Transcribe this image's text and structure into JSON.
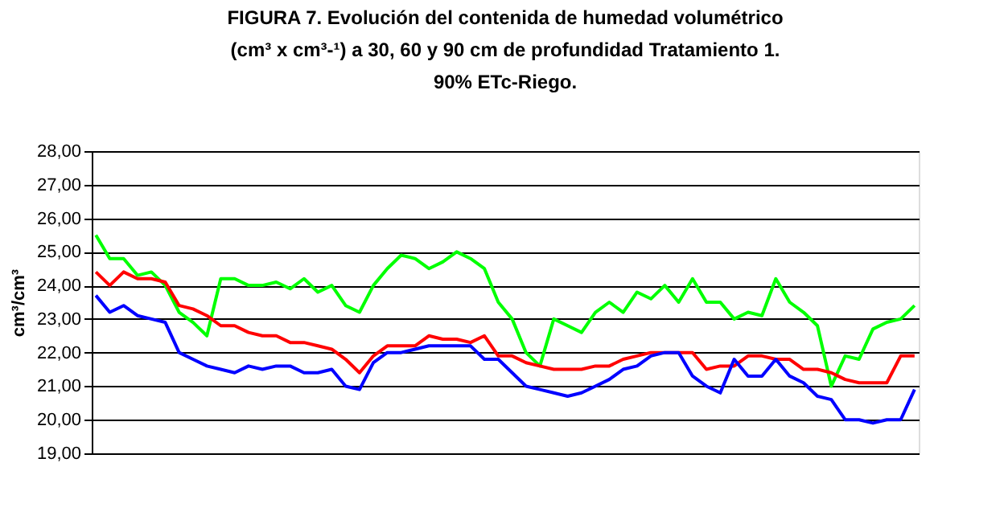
{
  "chart_data": {
    "type": "line",
    "title": "FIGURA 7. Evolución del contenida de humedad volumétrico\n(cm³ x cm³-¹) a 30, 60 y 90 cm de profundidad Tratamiento 1.\n90% ETc-Riego.",
    "ylabel": "cm³/cm³",
    "categories": [
      null,
      null,
      null,
      null,
      null,
      null,
      null,
      null,
      null,
      null,
      null,
      null,
      null,
      null,
      null,
      null,
      null,
      null,
      null,
      null,
      null,
      null,
      null,
      null,
      null,
      null,
      null,
      null,
      null,
      null,
      null,
      null,
      null,
      null,
      null,
      null,
      null,
      null,
      null,
      null,
      null,
      null,
      null,
      null,
      null,
      null,
      null,
      null,
      null,
      null,
      null,
      null,
      null,
      null,
      null,
      null,
      null,
      null,
      null,
      null
    ],
    "series": [
      {
        "color": "#00ff00",
        "values": [
          25.5,
          24.8,
          24.8,
          24.3,
          24.4,
          24.0,
          23.2,
          22.9,
          22.5,
          24.2,
          24.2,
          24.0,
          24.0,
          24.1,
          23.9,
          24.2,
          23.8,
          24.0,
          23.4,
          23.2,
          24.0,
          24.5,
          24.9,
          24.8,
          24.5,
          24.7,
          25.0,
          24.8,
          24.5,
          23.5,
          23.0,
          22.0,
          21.6,
          23.0,
          22.8,
          22.6,
          23.2,
          23.5,
          23.2,
          23.8,
          23.6,
          24.0,
          23.5,
          24.2,
          23.5,
          23.5,
          23.0,
          23.2,
          23.1,
          24.2,
          23.5,
          23.2,
          22.8,
          21.0,
          21.9,
          21.8,
          22.7,
          22.9,
          23.0,
          23.4
        ]
      },
      {
        "color": "#ff0000",
        "values": [
          24.4,
          24.0,
          24.4,
          24.2,
          24.2,
          24.1,
          23.4,
          23.3,
          23.1,
          22.8,
          22.8,
          22.6,
          22.5,
          22.5,
          22.3,
          22.3,
          22.2,
          22.1,
          21.8,
          21.4,
          21.9,
          22.2,
          22.2,
          22.2,
          22.5,
          22.4,
          22.4,
          22.3,
          22.5,
          21.9,
          21.9,
          21.7,
          21.6,
          21.5,
          21.5,
          21.5,
          21.6,
          21.6,
          21.8,
          21.9,
          22.0,
          22.0,
          22.0,
          22.0,
          21.5,
          21.6,
          21.6,
          21.9,
          21.9,
          21.8,
          21.8,
          21.5,
          21.5,
          21.4,
          21.2,
          21.1,
          21.1,
          21.1,
          21.9,
          21.9
        ]
      },
      {
        "color": "#0000ff",
        "values": [
          23.7,
          23.2,
          23.4,
          23.1,
          23.0,
          22.9,
          22.0,
          21.8,
          21.6,
          21.5,
          21.4,
          21.6,
          21.5,
          21.6,
          21.6,
          21.4,
          21.4,
          21.5,
          21.0,
          20.9,
          21.7,
          22.0,
          22.0,
          22.1,
          22.2,
          22.2,
          22.2,
          22.2,
          21.8,
          21.8,
          21.4,
          21.0,
          20.9,
          20.8,
          20.7,
          20.8,
          21.0,
          21.2,
          21.5,
          21.6,
          21.9,
          22.0,
          22.0,
          21.3,
          21.0,
          20.8,
          21.8,
          21.3,
          21.3,
          21.8,
          21.3,
          21.1,
          20.7,
          20.6,
          20.0,
          20.0,
          19.9,
          20.0,
          20.0,
          20.9
        ]
      }
    ],
    "ylim": [
      19,
      28
    ],
    "yticks": [
      {
        "value": 19,
        "label": "19,00"
      },
      {
        "value": 20,
        "label": "20,00"
      },
      {
        "value": 21,
        "label": "21,00"
      },
      {
        "value": 22,
        "label": "22,00"
      },
      {
        "value": 23,
        "label": "23,00"
      },
      {
        "value": 24,
        "label": "24,00"
      },
      {
        "value": 25,
        "label": "25,00"
      },
      {
        "value": 26,
        "label": "26,00"
      },
      {
        "value": 27,
        "label": "27,00"
      },
      {
        "value": 28,
        "label": "28,00"
      }
    ],
    "grid": "y",
    "legend": false,
    "tick_labels": "y",
    "marker": "none",
    "line_style": "solid"
  }
}
